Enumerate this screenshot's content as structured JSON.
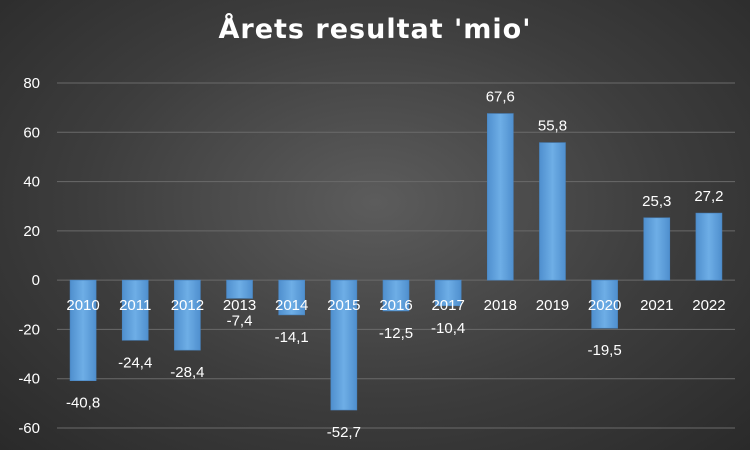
{
  "chart_data": {
    "type": "bar",
    "title": "Årets resultat 'mio'",
    "categories": [
      "2010",
      "2011",
      "2012",
      "2013",
      "2014",
      "2015",
      "2016",
      "2017",
      "2018",
      "2019",
      "2020",
      "2021",
      "2022"
    ],
    "values": [
      -40.8,
      -24.4,
      -28.4,
      -7.4,
      -14.1,
      -52.7,
      -12.5,
      -10.4,
      67.6,
      55.8,
      -19.5,
      25.3,
      27.2
    ],
    "value_labels": [
      "-40,8",
      "-24,4",
      "-28,4",
      "-7,4",
      "-14,1",
      "-52,7",
      "-12,5",
      "-10,4",
      "67,6",
      "55,8",
      "-19,5",
      "25,3",
      "27,2"
    ],
    "yticks": [
      -60,
      -40,
      -20,
      0,
      20,
      40,
      60,
      80
    ],
    "ylim": [
      -60,
      80
    ],
    "grid": true,
    "bar_color": "#5b9bd5",
    "text_color": "#ffffff",
    "gridline_color": "#6a6a6a"
  }
}
